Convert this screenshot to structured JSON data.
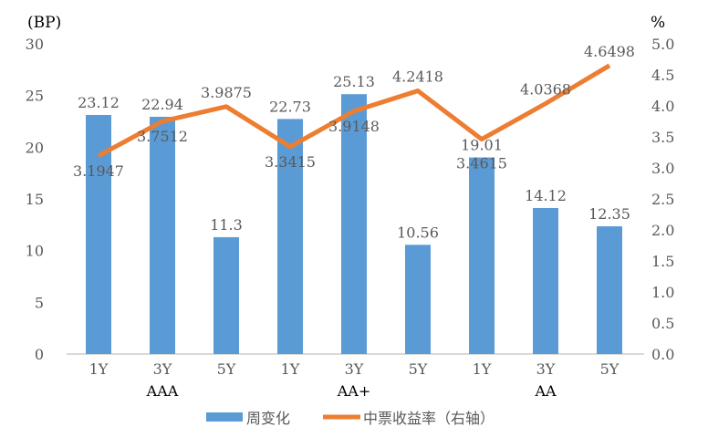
{
  "chart_data": {
    "type": "bar+line",
    "categories": [
      "1Y",
      "3Y",
      "5Y",
      "1Y",
      "3Y",
      "5Y",
      "1Y",
      "3Y",
      "5Y"
    ],
    "groups": [
      {
        "label": "AAA",
        "span": [
          0,
          2
        ]
      },
      {
        "label": "AA+",
        "span": [
          3,
          5
        ]
      },
      {
        "label": "AA",
        "span": [
          6,
          8
        ]
      }
    ],
    "series": [
      {
        "name": "周变化",
        "type": "bar",
        "axis": "left",
        "color": "#5B9BD5",
        "values": [
          23.12,
          22.94,
          11.3,
          22.73,
          25.13,
          10.56,
          19.01,
          14.12,
          12.35
        ],
        "labels": [
          "23.12",
          "22.94",
          "11.3",
          "22.73",
          "25.13",
          "10.56",
          "19.01",
          "14.12",
          "12.35"
        ]
      },
      {
        "name": "中票收益率（右轴）",
        "type": "line",
        "axis": "right",
        "color": "#ED7D31",
        "values": [
          3.1947,
          3.7512,
          3.9875,
          3.3415,
          3.9148,
          4.2418,
          3.4615,
          4.0368,
          4.6498
        ],
        "labels": [
          "3.1947",
          "3.7512",
          "3.9875",
          "3.3415",
          "3.9148",
          "4.2418",
          "3.4615",
          "4.0368",
          "4.6498"
        ]
      }
    ],
    "ylabel_left": "(BP)",
    "ylabel_right": "%",
    "ylim_left": [
      0,
      30
    ],
    "yticks_left": [
      "0",
      "5",
      "10",
      "15",
      "20",
      "25",
      "30"
    ],
    "ylim_right": [
      0,
      5
    ],
    "yticks_right": [
      "0.0",
      "0.5",
      "1.0",
      "1.5",
      "2.0",
      "2.5",
      "3.0",
      "3.5",
      "4.0",
      "4.5",
      "5.0"
    ],
    "grid": false,
    "legend": "bottom"
  }
}
